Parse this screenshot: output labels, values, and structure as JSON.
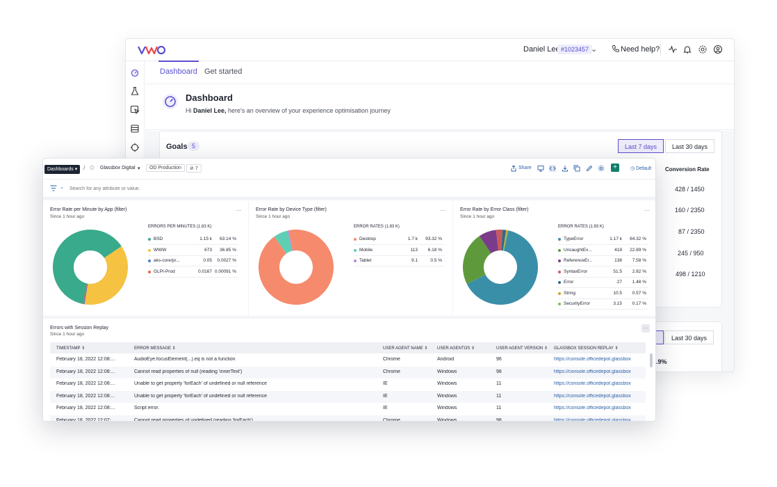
{
  "vwo": {
    "user_name": "Daniel Lee",
    "account_id": "#1023457",
    "help_label": "Need help?",
    "tabs": [
      {
        "label": "Dashboard"
      },
      {
        "label": "Get started"
      }
    ],
    "dashboard": {
      "title": "Dashboard",
      "greeting_prefix": "Hi ",
      "greeting_name": "Daniel Lee,",
      "greeting_rest": " here's an overview of your experience optimisation journey"
    },
    "goals": {
      "title": "Goals",
      "count": "5",
      "range_buttons": [
        "Last 7 days",
        "Last 30 days"
      ],
      "conversion_header": "Conversion Rate",
      "conversion_values": [
        "428 / 1450",
        "160 / 2350",
        "87 / 2350",
        "245 / 950",
        "498 / 1210"
      ]
    },
    "second_card": {
      "range_button": "Last 30 days",
      "pct_fragment": ".9%"
    }
  },
  "glassbox": {
    "dashboards_label": "Dashboards",
    "crumb_sep": "/",
    "crumb_name": "Glassbox Digital",
    "env_badge": "OD Production",
    "tag_count": "7",
    "share_label": "Share",
    "default_label": "Default",
    "filter_placeholder": "Search for any attribute or value.",
    "panels": [
      {
        "title": "Error Rate per Minute by App (filter)",
        "subtitle": "Since 1 hour ago",
        "legend_title": "ERRORS PER MINUTES (1.83 K)",
        "rows": [
          {
            "name": "BSD",
            "v1": "1.15 k",
            "v2": "63.14 %",
            "color": "#3aaa8c",
            "pct": 63.14
          },
          {
            "name": "WWW",
            "v1": "673",
            "v2": "36.85 %",
            "color": "#f5c242",
            "pct": 36.85
          },
          {
            "name": "aks-core/pr...",
            "v1": "0.05",
            "v2": "0.0027 %",
            "color": "#4a7fd6",
            "pct": 0.0027
          },
          {
            "name": "GLPI-Prod",
            "v1": "0.0167",
            "v2": "0.00091 %",
            "color": "#e8674a",
            "pct": 0.00091
          }
        ]
      },
      {
        "title": "Error Rate by Device Type (filter)",
        "subtitle": "Since 1 hour ago",
        "legend_title": "ERROR RATES (1.83 K)",
        "rows": [
          {
            "name": "Desktop",
            "v1": "1.7 k",
            "v2": "93.32 %",
            "color": "#f58b6c",
            "pct": 93.32
          },
          {
            "name": "Mobile",
            "v1": "113",
            "v2": "6.18 %",
            "color": "#5fcfb4",
            "pct": 6.18
          },
          {
            "name": "Tablet",
            "v1": "9.1",
            "v2": "0.5 %",
            "color": "#b48ae0",
            "pct": 0.5
          }
        ]
      },
      {
        "title": "Error Rate by Error Class (filter)",
        "subtitle": "Since 1 hour ago",
        "legend_title": "ERROR RATES (1.83 K)",
        "rows": [
          {
            "name": "TypeError",
            "v1": "1.17 k",
            "v2": "64.32 %",
            "color": "#3a8fa8",
            "pct": 64.32
          },
          {
            "name": "UncaughtEx...",
            "v1": "418",
            "v2": "22.89 %",
            "color": "#5e9a3c",
            "pct": 22.89
          },
          {
            "name": "ReferenceEr...",
            "v1": "138",
            "v2": "7.58 %",
            "color": "#7a3c8a",
            "pct": 7.58
          },
          {
            "name": "SyntaxError",
            "v1": "51.5",
            "v2": "2.82 %",
            "color": "#c85a5a",
            "pct": 2.82
          },
          {
            "name": "Error",
            "v1": "27",
            "v2": "1.48 %",
            "color": "#2a6a8a",
            "pct": 1.48
          },
          {
            "name": "String",
            "v1": "10.5",
            "v2": "0.57 %",
            "color": "#d8a030",
            "pct": 0.57
          },
          {
            "name": "SecurityError",
            "v1": "3.15",
            "v2": "0.17 %",
            "color": "#7ac060",
            "pct": 0.17
          }
        ]
      }
    ],
    "table": {
      "title": "Errors with Session Replay",
      "subtitle": "Since 1 hour ago",
      "more_label": "...",
      "columns": [
        "TIMESTAMP",
        "ERROR MESSAGE",
        "USER AGENT NAME",
        "USER AGENTOS",
        "USER AGENT VERSION",
        "GLASSBOX SESSION REPLAY"
      ],
      "rows": [
        [
          "February 18, 2022 12:08:...",
          "AudioEye.focusElement(...).eq is not a function",
          "Chrome",
          "Android",
          "96",
          "https://console.officedepot.glassbox"
        ],
        [
          "February 18, 2022 12:08:...",
          "Cannot read properties of null (reading 'innerText')",
          "Chrome",
          "Windows",
          "98",
          "https://console.officedepot.glassbox"
        ],
        [
          "February 18, 2022 12:08:...",
          "Unable to get property 'forEach' of undefined or null reference",
          "IE",
          "Windows",
          "11",
          "https://console.officedepot.glassbox"
        ],
        [
          "February 18, 2022 12:08:...",
          "Unable to get property 'forEach' of undefined or null reference",
          "IE",
          "Windows",
          "11",
          "https://console.officedepot.glassbox"
        ],
        [
          "February 18, 2022 12:08:...",
          "Script error.",
          "IE",
          "Windows",
          "11",
          "https://console.officedepot.glassbox"
        ],
        [
          "February 18, 2022 12:07:...",
          "Cannot read properties of undefined (reading 'forEach')",
          "Chrome",
          "Windows",
          "98",
          "https://console.officedepot.glassbox"
        ]
      ]
    }
  },
  "colors": {
    "accent": "#5a4fcf",
    "teal": "#137c6c",
    "link": "#2a5fa8"
  }
}
